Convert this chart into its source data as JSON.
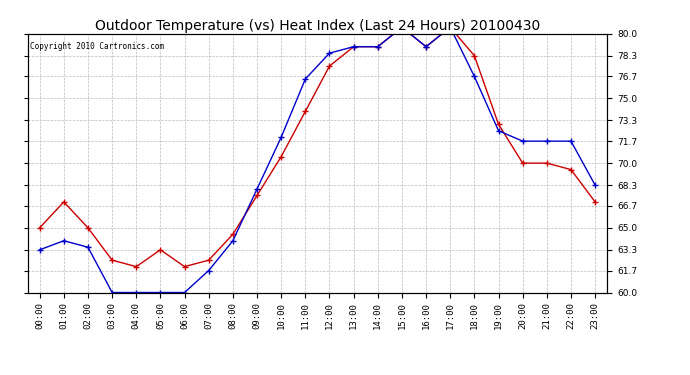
{
  "title": "Outdoor Temperature (vs) Heat Index (Last 24 Hours) 20100430",
  "copyright": "Copyright 2010 Cartronics.com",
  "hours": [
    "00:00",
    "01:00",
    "02:00",
    "03:00",
    "04:00",
    "05:00",
    "06:00",
    "07:00",
    "08:00",
    "09:00",
    "10:00",
    "11:00",
    "12:00",
    "13:00",
    "14:00",
    "15:00",
    "16:00",
    "17:00",
    "18:00",
    "19:00",
    "20:00",
    "21:00",
    "22:00",
    "23:00"
  ],
  "temp": [
    65.0,
    67.0,
    65.0,
    62.5,
    62.0,
    63.3,
    62.0,
    62.5,
    64.5,
    67.5,
    70.5,
    74.0,
    77.5,
    79.0,
    79.0,
    80.5,
    79.0,
    80.5,
    78.3,
    73.0,
    70.0,
    70.0,
    69.5,
    67.0
  ],
  "heat_index": [
    63.3,
    64.0,
    63.5,
    60.0,
    60.0,
    60.0,
    60.0,
    61.7,
    64.0,
    68.0,
    72.0,
    76.5,
    78.5,
    79.0,
    79.0,
    80.5,
    79.0,
    80.5,
    76.7,
    72.5,
    71.7,
    71.7,
    71.7,
    68.3
  ],
  "temp_color": "#cc0000",
  "heat_color": "#0000cc",
  "ylim_min": 60.0,
  "ylim_max": 80.0,
  "yticks": [
    60.0,
    61.7,
    63.3,
    65.0,
    66.7,
    68.3,
    70.0,
    71.7,
    73.3,
    75.0,
    76.7,
    78.3,
    80.0
  ],
  "bg_color": "#ffffff",
  "plot_bg": "#ffffff",
  "grid_color": "#bbbbbb",
  "title_fontsize": 10,
  "tick_fontsize": 6.5,
  "marker": "+"
}
